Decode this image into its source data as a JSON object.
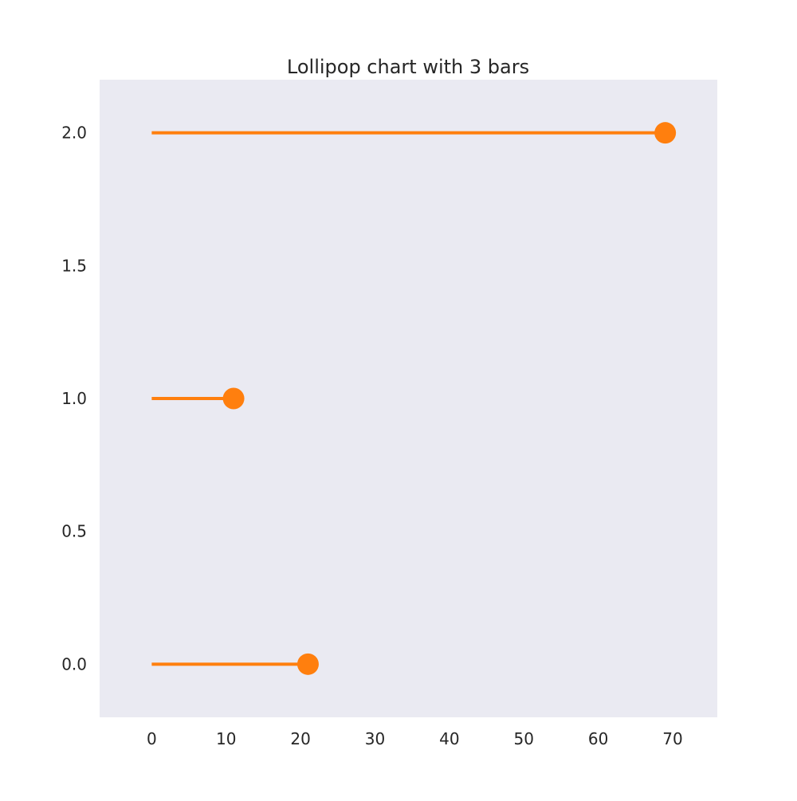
{
  "chart_data": {
    "type": "lollipop",
    "title": "Lollipop chart with 3 bars",
    "xlabel": "",
    "ylabel": "",
    "orientation": "horizontal",
    "points": [
      {
        "y": 0.0,
        "x": 21
      },
      {
        "y": 1.0,
        "x": 11
      },
      {
        "y": 2.0,
        "x": 69
      }
    ],
    "xlim": [
      -7,
      76
    ],
    "ylim": [
      -0.2,
      2.2
    ],
    "xticks": [
      0,
      10,
      20,
      30,
      40,
      50,
      60,
      70
    ],
    "xtick_labels": [
      "0",
      "10",
      "20",
      "30",
      "40",
      "50",
      "60",
      "70"
    ],
    "yticks": [
      0.0,
      0.5,
      1.0,
      1.5,
      2.0
    ],
    "ytick_labels": [
      "0.0",
      "0.5",
      "1.0",
      "1.5",
      "2.0"
    ],
    "grid": false,
    "colors": {
      "plot_background": "#EAEAF2",
      "marker": "#FF7F0E",
      "stem": "#FF7F0E",
      "text": "#262626"
    }
  }
}
